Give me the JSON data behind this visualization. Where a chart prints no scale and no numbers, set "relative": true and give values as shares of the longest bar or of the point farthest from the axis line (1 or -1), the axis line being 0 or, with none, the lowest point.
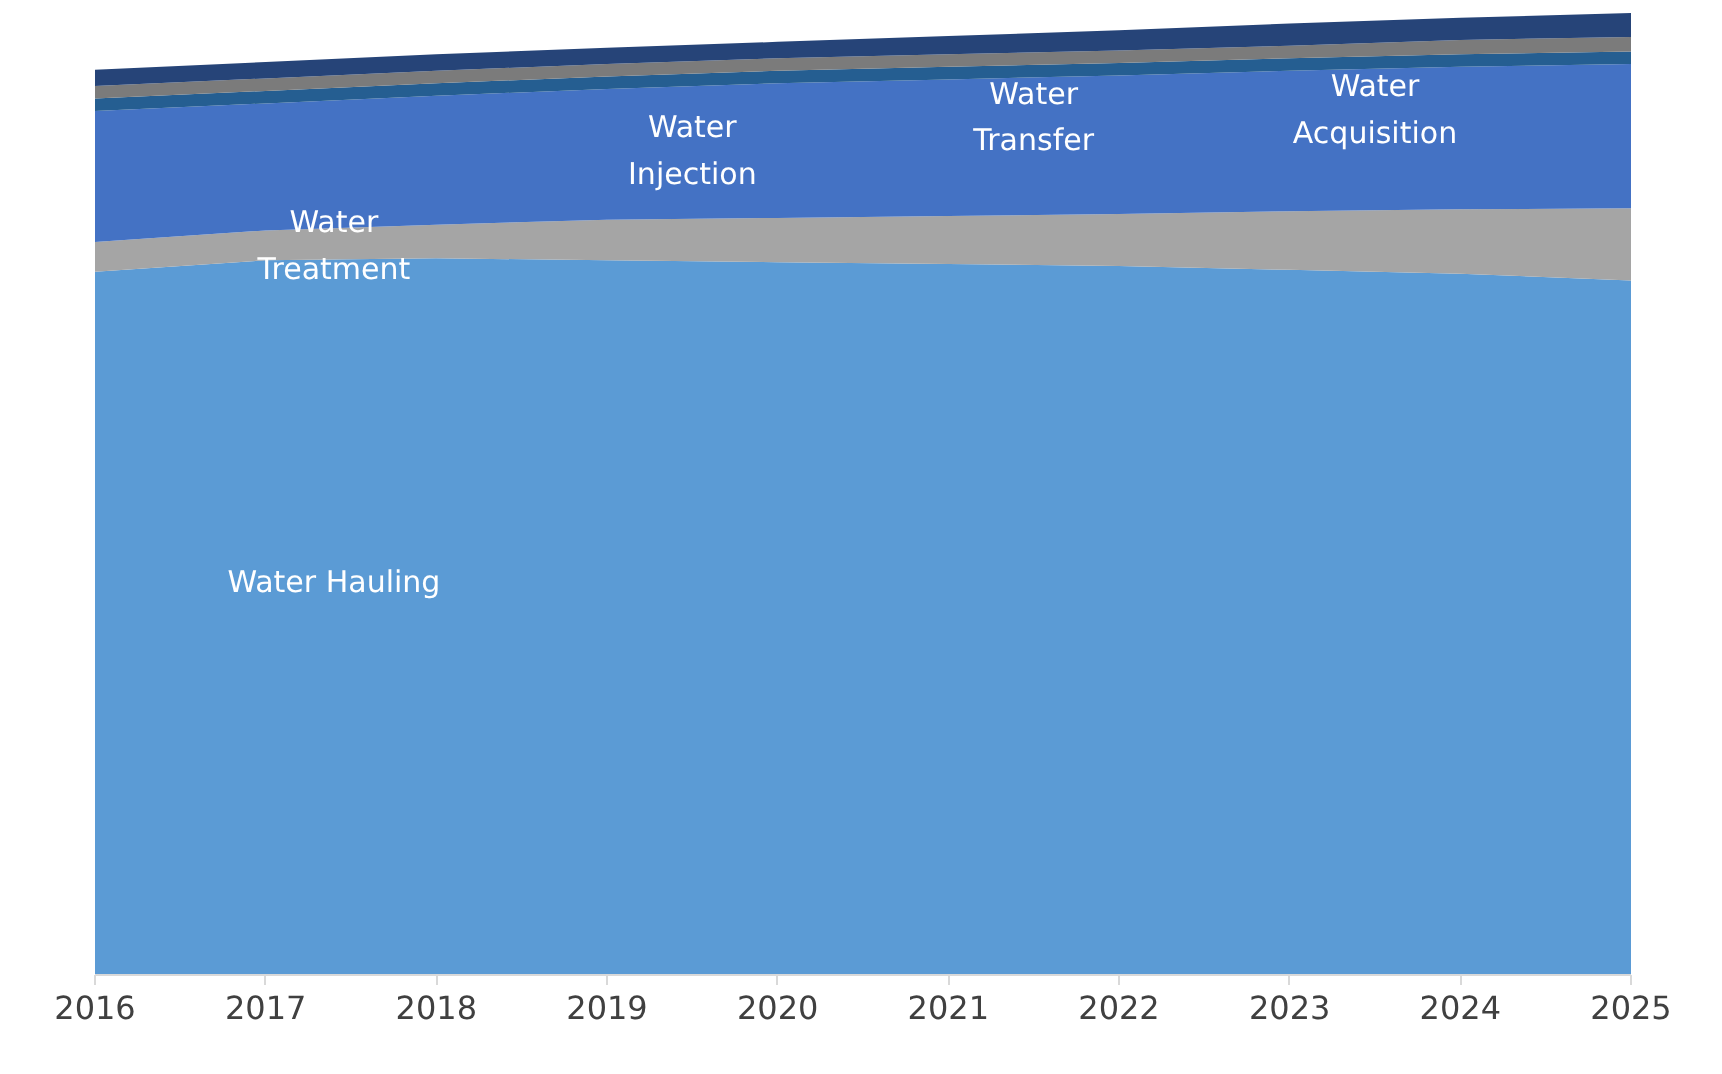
{
  "chart_data": {
    "type": "area",
    "stacked": true,
    "relative": true,
    "grid": false,
    "legend": false,
    "categories": [
      "2016",
      "2017",
      "2018",
      "2019",
      "2020",
      "2021",
      "2022",
      "2023",
      "2024",
      "2025"
    ],
    "series": [
      {
        "name": "Water Hauling",
        "color": "#5b9bd5",
        "values": [
          0.731,
          0.743,
          0.745,
          0.743,
          0.741,
          0.739,
          0.737,
          0.733,
          0.729,
          0.722
        ]
      },
      {
        "name": "Water Treatment",
        "color": "#a5a5a5",
        "values": [
          0.031,
          0.031,
          0.035,
          0.042,
          0.046,
          0.05,
          0.054,
          0.061,
          0.067,
          0.075
        ]
      },
      {
        "name": "Water Injection",
        "color": "#4472c4",
        "values": [
          0.136,
          0.132,
          0.134,
          0.136,
          0.14,
          0.142,
          0.144,
          0.146,
          0.148,
          0.15
        ]
      },
      {
        "name": "Water Transfer",
        "color": "#255e91",
        "values": [
          0.013,
          0.013,
          0.013,
          0.013,
          0.013,
          0.013,
          0.013,
          0.013,
          0.013,
          0.013
        ]
      },
      {
        "name": "Water Acquisition",
        "color": "#7b7b7b",
        "values": [
          0.013,
          0.013,
          0.013,
          0.013,
          0.013,
          0.013,
          0.013,
          0.013,
          0.015,
          0.015
        ]
      },
      {
        "color": "#264478",
        "values": [
          0.017,
          0.017,
          0.017,
          0.017,
          0.017,
          0.019,
          0.021,
          0.023,
          0.023,
          0.025
        ]
      }
    ]
  }
}
